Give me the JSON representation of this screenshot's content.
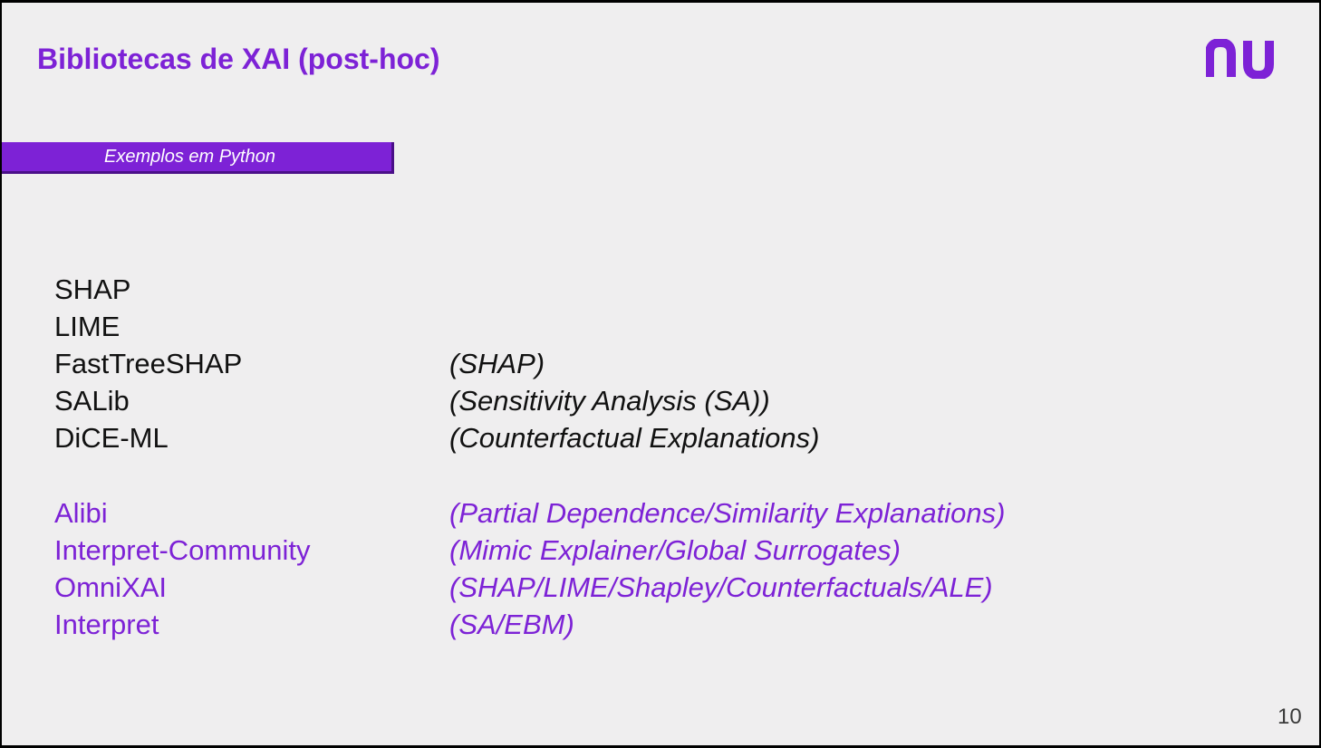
{
  "slide": {
    "title": "Bibliotecas de XAI (post-hoc)",
    "banner": "Exemplos em Python",
    "logo_alt": "nu",
    "page_number": "10",
    "accent_color": "#7d22d6",
    "libraries_primary": [
      {
        "name": "SHAP",
        "desc": ""
      },
      {
        "name": "LIME",
        "desc": ""
      },
      {
        "name": "FastTreeSHAP",
        "desc": "(SHAP)"
      },
      {
        "name": "SALib",
        "desc": "(Sensitivity Analysis (SA))"
      },
      {
        "name": "DiCE-ML",
        "desc": "(Counterfactual Explanations)"
      }
    ],
    "libraries_secondary": [
      {
        "name": "Alibi",
        "desc": "(Partial Dependence/Similarity Explanations)"
      },
      {
        "name": "Interpret-Community",
        "desc": "(Mimic Explainer/Global Surrogates)"
      },
      {
        "name": "OmniXAI",
        "desc": "(SHAP/LIME/Shapley/Counterfactuals/ALE)"
      },
      {
        "name": "Interpret",
        "desc": "(SA/EBM)"
      }
    ]
  }
}
